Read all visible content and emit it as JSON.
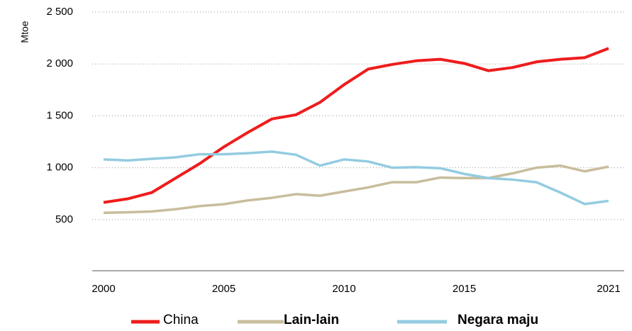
{
  "chart_data": {
    "type": "line",
    "y_label": "Mtoe",
    "x": [
      2000,
      2001,
      2002,
      2003,
      2004,
      2005,
      2006,
      2007,
      2008,
      2009,
      2010,
      2011,
      2012,
      2013,
      2014,
      2015,
      2016,
      2017,
      2018,
      2019,
      2020,
      2021
    ],
    "series": [
      {
        "name": "China",
        "color": "#ee1c1c",
        "values": [
          665,
          700,
          760,
          900,
          1040,
          1200,
          1340,
          1470,
          1510,
          1630,
          1800,
          1950,
          1995,
          2030,
          2045,
          2005,
          1935,
          1965,
          2020,
          2045,
          2060,
          2150
        ]
      },
      {
        "name": "Lain-lain",
        "color": "#c8bd9c",
        "values": [
          565,
          570,
          578,
          600,
          630,
          648,
          685,
          710,
          745,
          730,
          770,
          810,
          860,
          860,
          905,
          900,
          900,
          945,
          1000,
          1020,
          965,
          1010
        ]
      },
      {
        "name": "Negara maju",
        "color": "#93cce0",
        "values": [
          1080,
          1070,
          1085,
          1100,
          1130,
          1130,
          1140,
          1155,
          1125,
          1020,
          1080,
          1060,
          1000,
          1005,
          995,
          940,
          900,
          885,
          860,
          760,
          650,
          680
        ]
      }
    ],
    "xlim": [
      2000,
      2021
    ],
    "xticks": [
      2000,
      2005,
      2010,
      2015,
      2021
    ],
    "ylim": [
      0,
      2500
    ],
    "yticks": [
      500,
      {
        "value": 1000,
        "label": "1 000"
      },
      {
        "value": 1500,
        "label": "1 500"
      },
      {
        "value": 2000,
        "label": "2 000"
      },
      {
        "value": 2500,
        "label": "2 500"
      }
    ],
    "grid": true
  }
}
